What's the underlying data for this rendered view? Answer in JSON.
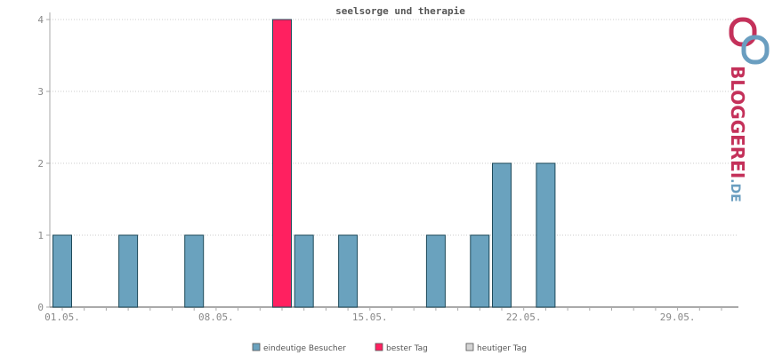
{
  "chart_data": {
    "type": "bar",
    "title": "seelsorge und therapie",
    "xlabel": "",
    "ylabel": "",
    "ylim": [
      0,
      4
    ],
    "yticks": [
      "0",
      "1",
      "2",
      "3",
      "4"
    ],
    "x_tick_labels": [
      {
        "day": 1,
        "label": "01.05."
      },
      {
        "day": 8,
        "label": "08.05."
      },
      {
        "day": 15,
        "label": "15.05."
      },
      {
        "day": 22,
        "label": "22.05."
      },
      {
        "day": 29,
        "label": "29.05."
      }
    ],
    "grid": true,
    "legend_position": "bottom-center",
    "bars": [
      {
        "day": 1,
        "value": 1,
        "series": "eindeutige Besucher"
      },
      {
        "day": 4,
        "value": 1,
        "series": "eindeutige Besucher"
      },
      {
        "day": 7,
        "value": 1,
        "series": "eindeutige Besucher"
      },
      {
        "day": 11,
        "value": 4,
        "series": "bester Tag"
      },
      {
        "day": 12,
        "value": 1,
        "series": "eindeutige Besucher"
      },
      {
        "day": 14,
        "value": 1,
        "series": "eindeutige Besucher"
      },
      {
        "day": 18,
        "value": 1,
        "series": "eindeutige Besucher"
      },
      {
        "day": 20,
        "value": 1,
        "series": "eindeutige Besucher"
      },
      {
        "day": 21,
        "value": 2,
        "series": "eindeutige Besucher"
      },
      {
        "day": 23,
        "value": 2,
        "series": "eindeutige Besucher"
      }
    ],
    "legend": [
      {
        "name": "eindeutige Besucher",
        "color": "#6aa2be"
      },
      {
        "name": "bester Tag",
        "color": "#ff2060"
      },
      {
        "name": "heutiger Tag",
        "color": "#d3d3d3"
      }
    ]
  },
  "logo": {
    "text": "BLOGGEREI",
    "suffix": ".DE",
    "color_main": "#c4315a",
    "color_suffix": "#6a9ec0"
  },
  "colors": {
    "bar_stroke": "#1e4a5a",
    "axis": "#aaaaaa",
    "grid": "#cccccc"
  }
}
